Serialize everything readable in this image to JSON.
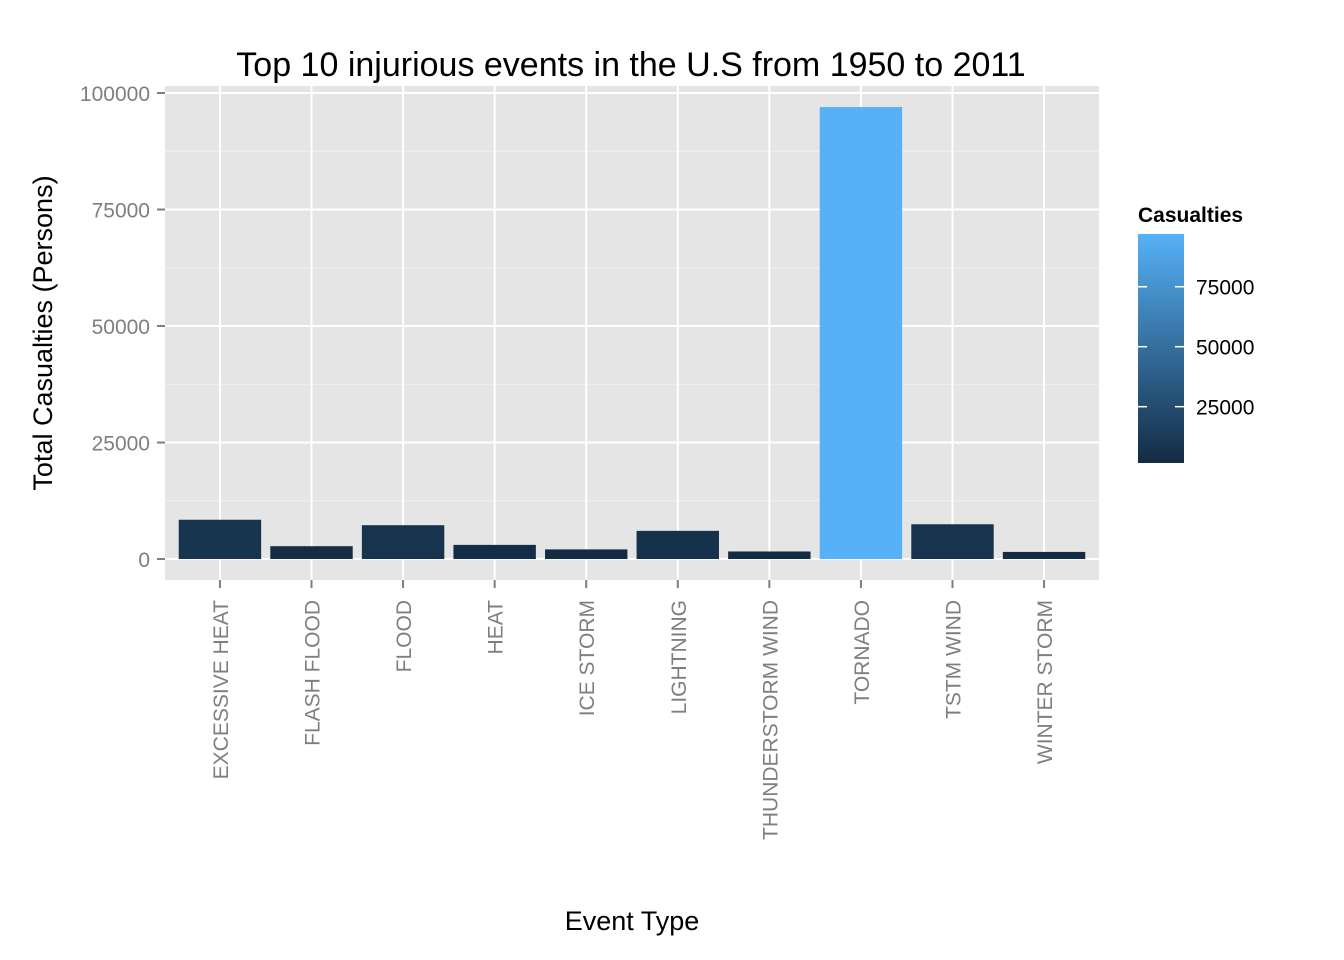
{
  "chart_data": {
    "type": "bar",
    "title": "Top 10 injurious events in the U.S from 1950 to 2011",
    "xlabel": "Event Type",
    "ylabel": "Total Casualties (Persons)",
    "categories": [
      "EXCESSIVE HEAT",
      "FLASH FLOOD",
      "FLOOD",
      "HEAT",
      "ICE STORM",
      "LIGHTNING",
      "THUNDERSTORM WIND",
      "TORNADO",
      "TSTM WIND",
      "WINTER STORM"
    ],
    "values": [
      8428,
      2755,
      7259,
      3037,
      2064,
      6046,
      1621,
      96979,
      7461,
      1527
    ],
    "ylim": [
      -4500,
      101500
    ],
    "yticks": [
      0,
      25000,
      50000,
      75000,
      100000
    ],
    "ytick_labels": [
      "0",
      "25000",
      "50000",
      "75000",
      "100000"
    ],
    "grid": true,
    "legend": {
      "title": "Casualties",
      "placement": "right",
      "range": [
        1527,
        96979
      ],
      "low_color": "#132b43",
      "high_color": "#56b1f7",
      "ticks": [
        25000,
        50000,
        75000
      ],
      "tick_labels": [
        "25000",
        "50000",
        "75000"
      ]
    },
    "colors": {
      "panel_background": "#e5e5e5",
      "grid_major": "#ffffff",
      "grid_minor": "#f2f2f2",
      "tick_text": "#7f7f7f"
    }
  }
}
